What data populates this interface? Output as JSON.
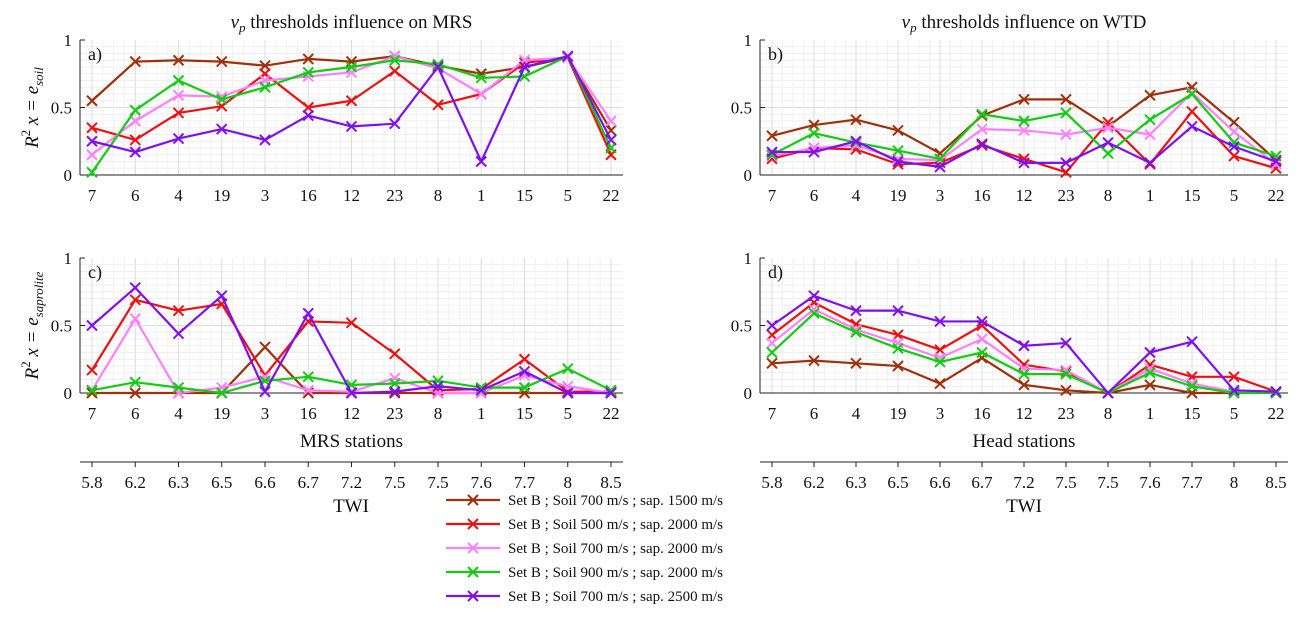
{
  "figure": {
    "x_stations": [
      "7",
      "6",
      "4",
      "19",
      "3",
      "16",
      "12",
      "23",
      "8",
      "1",
      "15",
      "5",
      "22"
    ],
    "twi_ticks": [
      "5.8",
      "6.2",
      "6.3",
      "6.5",
      "6.6",
      "6.7",
      "7.2",
      "7.5",
      "7.5",
      "7.6",
      "7.7",
      "8",
      "8.5"
    ],
    "twi_label": "TWI",
    "y_ticks": [
      "0",
      "0.5",
      "1"
    ]
  },
  "chart_data": [
    {
      "type": "line",
      "panel": "a)",
      "title": "v_p thresholds influence on MRS",
      "title_var": "v",
      "title_sub": "p",
      "title_rest": " thresholds influence on MRS",
      "ylabel": "R² x = e_soil",
      "ylabel_base": "R",
      "ylabel_sup": "2",
      "ylabel_mid": " x = e",
      "ylabel_sub": "soil",
      "xlabel": "",
      "ylim": [
        0,
        1
      ],
      "categories": [
        "7",
        "6",
        "4",
        "19",
        "3",
        "16",
        "12",
        "23",
        "8",
        "1",
        "15",
        "5",
        "22"
      ],
      "series": [
        {
          "name": "Set B ; Soil 700 m/s ; sap. 1500 m/s",
          "color": "#a0300a",
          "values": [
            0.55,
            0.84,
            0.85,
            0.84,
            0.81,
            0.86,
            0.84,
            0.88,
            0.81,
            0.75,
            0.8,
            0.87,
            0.33
          ]
        },
        {
          "name": "Set B ; Soil 500 m/s ; sap. 2000 m/s",
          "color": "#ee1010",
          "values": [
            0.35,
            0.26,
            0.46,
            0.51,
            0.75,
            0.5,
            0.55,
            0.77,
            0.52,
            0.6,
            0.83,
            0.87,
            0.15
          ]
        },
        {
          "name": "Set B ; Soil 700 m/s ; sap. 2000 m/s",
          "color": "#ff80ff",
          "values": [
            0.15,
            0.4,
            0.59,
            0.58,
            0.7,
            0.73,
            0.76,
            0.88,
            0.79,
            0.6,
            0.85,
            0.87,
            0.4
          ]
        },
        {
          "name": "Set B ; Soil 900 m/s ; sap. 2000 m/s",
          "color": "#11cc11",
          "values": [
            0.02,
            0.48,
            0.7,
            0.56,
            0.65,
            0.76,
            0.8,
            0.85,
            0.82,
            0.72,
            0.73,
            0.88,
            0.2
          ]
        },
        {
          "name": "Set B ; Soil 700 m/s ; sap. 2500 m/s",
          "color": "#7f10ee",
          "values": [
            0.25,
            0.17,
            0.27,
            0.34,
            0.26,
            0.44,
            0.36,
            0.38,
            0.8,
            0.1,
            0.8,
            0.88,
            0.26
          ]
        }
      ]
    },
    {
      "type": "line",
      "panel": "b)",
      "title": "v_p thresholds influence on WTD",
      "title_var": "v",
      "title_sub": "p",
      "title_rest": " thresholds influence on WTD",
      "ylabel": "",
      "xlabel": "",
      "ylim": [
        0,
        1
      ],
      "categories": [
        "7",
        "6",
        "4",
        "19",
        "3",
        "16",
        "12",
        "23",
        "8",
        "1",
        "15",
        "5",
        "22"
      ],
      "series": [
        {
          "name": "Set B ; Soil 700 m/s ; sap. 1500 m/s",
          "color": "#a0300a",
          "values": [
            0.29,
            0.37,
            0.41,
            0.33,
            0.16,
            0.44,
            0.56,
            0.56,
            0.36,
            0.59,
            0.65,
            0.39,
            0.11
          ]
        },
        {
          "name": "Set B ; Soil 500 m/s ; sap. 2000 m/s",
          "color": "#ee1010",
          "values": [
            0.12,
            0.2,
            0.19,
            0.08,
            0.09,
            0.22,
            0.12,
            0.02,
            0.39,
            0.08,
            0.47,
            0.14,
            0.05
          ]
        },
        {
          "name": "Set B ; Soil 700 m/s ; sap. 2000 m/s",
          "color": "#ff80ff",
          "values": [
            0.14,
            0.2,
            0.22,
            0.12,
            0.11,
            0.34,
            0.33,
            0.3,
            0.35,
            0.3,
            0.61,
            0.32,
            0.08
          ]
        },
        {
          "name": "Set B ; Soil 900 m/s ; sap. 2000 m/s",
          "color": "#11cc11",
          "values": [
            0.15,
            0.31,
            0.24,
            0.18,
            0.12,
            0.45,
            0.4,
            0.46,
            0.16,
            0.41,
            0.6,
            0.24,
            0.14
          ]
        },
        {
          "name": "Set B ; Soil 700 m/s ; sap. 2500 m/s",
          "color": "#7f10ee",
          "values": [
            0.17,
            0.17,
            0.25,
            0.1,
            0.06,
            0.23,
            0.09,
            0.09,
            0.24,
            0.09,
            0.36,
            0.21,
            0.1
          ]
        }
      ]
    },
    {
      "type": "line",
      "panel": "c)",
      "title": "",
      "ylabel": "R² x = e_saprolite",
      "ylabel_base": "R",
      "ylabel_sup": "2",
      "ylabel_mid": " x = e",
      "ylabel_sub": "saprolite",
      "xlabel": "MRS stations",
      "ylim": [
        0,
        1
      ],
      "categories": [
        "7",
        "6",
        "4",
        "19",
        "3",
        "16",
        "12",
        "23",
        "8",
        "1",
        "15",
        "5",
        "22"
      ],
      "series": [
        {
          "name": "Set B ; Soil 700 m/s ; sap. 1500 m/s",
          "color": "#a0300a",
          "values": [
            0.0,
            0.0,
            0.0,
            0.0,
            0.34,
            0.0,
            0.0,
            0.0,
            0.0,
            0.0,
            0.0,
            0.0,
            0.0
          ]
        },
        {
          "name": "Set B ; Soil 500 m/s ; sap. 2000 m/s",
          "color": "#ee1010",
          "values": [
            0.17,
            0.69,
            0.61,
            0.66,
            0.13,
            0.53,
            0.52,
            0.29,
            0.02,
            0.03,
            0.25,
            0.01,
            0.01
          ]
        },
        {
          "name": "Set B ; Soil 700 m/s ; sap. 2000 m/s",
          "color": "#ff80ff",
          "values": [
            0.02,
            0.55,
            0.0,
            0.04,
            0.12,
            0.02,
            0.01,
            0.11,
            0.0,
            0.0,
            0.13,
            0.05,
            0.0
          ]
        },
        {
          "name": "Set B ; Soil 900 m/s ; sap. 2000 m/s",
          "color": "#11cc11",
          "values": [
            0.02,
            0.08,
            0.04,
            0.0,
            0.09,
            0.12,
            0.06,
            0.07,
            0.09,
            0.04,
            0.04,
            0.18,
            0.02
          ]
        },
        {
          "name": "Set B ; Soil 700 m/s ; sap. 2500 m/s",
          "color": "#7f10ee",
          "values": [
            0.5,
            0.78,
            0.44,
            0.72,
            0.01,
            0.59,
            0.0,
            0.01,
            0.05,
            0.02,
            0.16,
            0.0,
            0.0
          ]
        }
      ]
    },
    {
      "type": "line",
      "panel": "d)",
      "title": "",
      "ylabel": "",
      "xlabel": "Head stations",
      "ylim": [
        0,
        1
      ],
      "categories": [
        "7",
        "6",
        "4",
        "19",
        "3",
        "16",
        "12",
        "23",
        "8",
        "1",
        "15",
        "5",
        "22"
      ],
      "series": [
        {
          "name": "Set B ; Soil 700 m/s ; sap. 1500 m/s",
          "color": "#a0300a",
          "values": [
            0.22,
            0.24,
            0.22,
            0.2,
            0.07,
            0.26,
            0.06,
            0.02,
            0.0,
            0.06,
            0.0,
            0.0,
            0.01
          ]
        },
        {
          "name": "Set B ; Soil 500 m/s ; sap. 2000 m/s",
          "color": "#ee1010",
          "values": [
            0.43,
            0.67,
            0.51,
            0.43,
            0.32,
            0.5,
            0.21,
            0.16,
            0.0,
            0.21,
            0.12,
            0.12,
            0.01
          ]
        },
        {
          "name": "Set B ; Soil 700 m/s ; sap. 2000 m/s",
          "color": "#ff80ff",
          "values": [
            0.37,
            0.62,
            0.47,
            0.37,
            0.26,
            0.4,
            0.18,
            0.17,
            0.0,
            0.18,
            0.07,
            0.01,
            0.0
          ]
        },
        {
          "name": "Set B ; Soil 900 m/s ; sap. 2000 m/s",
          "color": "#11cc11",
          "values": [
            0.3,
            0.59,
            0.45,
            0.33,
            0.23,
            0.3,
            0.14,
            0.14,
            0.0,
            0.15,
            0.05,
            0.0,
            0.0
          ]
        },
        {
          "name": "Set B ; Soil 700 m/s ; sap. 2500 m/s",
          "color": "#7f10ee",
          "values": [
            0.5,
            0.72,
            0.61,
            0.61,
            0.53,
            0.53,
            0.35,
            0.37,
            0.0,
            0.3,
            0.38,
            0.02,
            0.01
          ]
        }
      ]
    }
  ],
  "legend": {
    "location": "bottom-center",
    "entries": [
      {
        "label": "Set B ; Soil 700 m/s ; sap. 1500 m/s",
        "color": "#a0300a"
      },
      {
        "label": "Set B ; Soil 500 m/s ; sap. 2000 m/s",
        "color": "#ee1010"
      },
      {
        "label": "Set B ; Soil 700 m/s ; sap. 2000 m/s",
        "color": "#ff80ff"
      },
      {
        "label": "Set B ; Soil 900 m/s ; sap. 2000 m/s",
        "color": "#11cc11"
      },
      {
        "label": "Set B ; Soil 700 m/s ; sap. 2500 m/s",
        "color": "#7f10ee"
      }
    ]
  }
}
